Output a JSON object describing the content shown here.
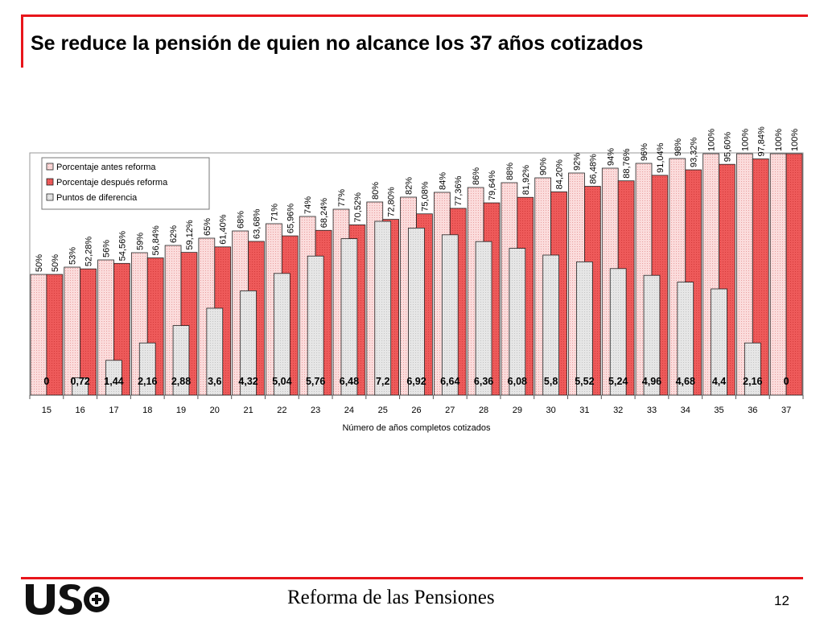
{
  "slide": {
    "title": "Se reduce la pensión de quien no alcance los 37 años cotizados",
    "footer": "Reforma de las Pensiones",
    "page_number": "12",
    "logo_text": "USO"
  },
  "colors": {
    "accent": "#e8151b",
    "before_fill": "#fbdcdc",
    "after_fill": "#ee5a5a",
    "diff_fill": "#e6e6e6"
  },
  "chart_data": {
    "type": "bar",
    "title": "",
    "xlabel": "Número de años completos cotizados",
    "ylabel": "",
    "ylim": [
      0,
      100
    ],
    "grid": false,
    "legend_position": "top-left",
    "categories": [
      "15",
      "16",
      "17",
      "18",
      "19",
      "20",
      "21",
      "22",
      "23",
      "24",
      "25",
      "26",
      "27",
      "28",
      "29",
      "30",
      "31",
      "32",
      "33",
      "34",
      "35",
      "36",
      "37"
    ],
    "series": [
      {
        "name": "Porcentaje antes reforma",
        "values": [
          50,
          53,
          56,
          59,
          62,
          65,
          68,
          71,
          74,
          77,
          80,
          82,
          84,
          86,
          88,
          90,
          92,
          94,
          96,
          98,
          100,
          100,
          100
        ],
        "labels": [
          "50%",
          "53%",
          "56%",
          "59%",
          "62%",
          "65%",
          "68%",
          "71%",
          "74%",
          "77%",
          "80%",
          "82%",
          "84%",
          "86%",
          "88%",
          "90%",
          "92%",
          "94%",
          "96%",
          "98%",
          "100%",
          "100%",
          "100%"
        ]
      },
      {
        "name": "Porcentaje después reforma",
        "values": [
          50,
          52.28,
          54.56,
          56.84,
          59.12,
          61.4,
          63.68,
          65.96,
          68.24,
          70.52,
          72.8,
          75.08,
          77.36,
          79.64,
          81.92,
          84.2,
          86.48,
          88.76,
          91.04,
          93.32,
          95.6,
          97.84,
          100
        ],
        "labels": [
          "50%",
          "52,28%",
          "54,56%",
          "56,84%",
          "59,12%",
          "61,40%",
          "63,68%",
          "65,96%",
          "68,24%",
          "70,52%",
          "72,80%",
          "75,08%",
          "77,36%",
          "79,64%",
          "81,92%",
          "84,20%",
          "86,48%",
          "88,76%",
          "91,04%",
          "93,32%",
          "95,60%",
          "97,84%",
          "100%"
        ]
      },
      {
        "name": "Puntos de diferencia",
        "values": [
          0,
          0.72,
          1.44,
          2.16,
          2.88,
          3.6,
          4.32,
          5.04,
          5.76,
          6.48,
          7.2,
          6.92,
          6.64,
          6.36,
          6.08,
          5.8,
          5.52,
          5.24,
          4.96,
          4.68,
          4.4,
          2.16,
          0
        ],
        "labels": [
          "0",
          "0,72",
          "1,44",
          "2,16",
          "2,88",
          "3,6",
          "4,32",
          "5,04",
          "5,76",
          "6,48",
          "7,2",
          "6,92",
          "6,64",
          "6,36",
          "6,08",
          "5,8",
          "5,52",
          "5,24",
          "4,96",
          "4,68",
          "4,4",
          "2,16",
          "0"
        ]
      }
    ]
  }
}
